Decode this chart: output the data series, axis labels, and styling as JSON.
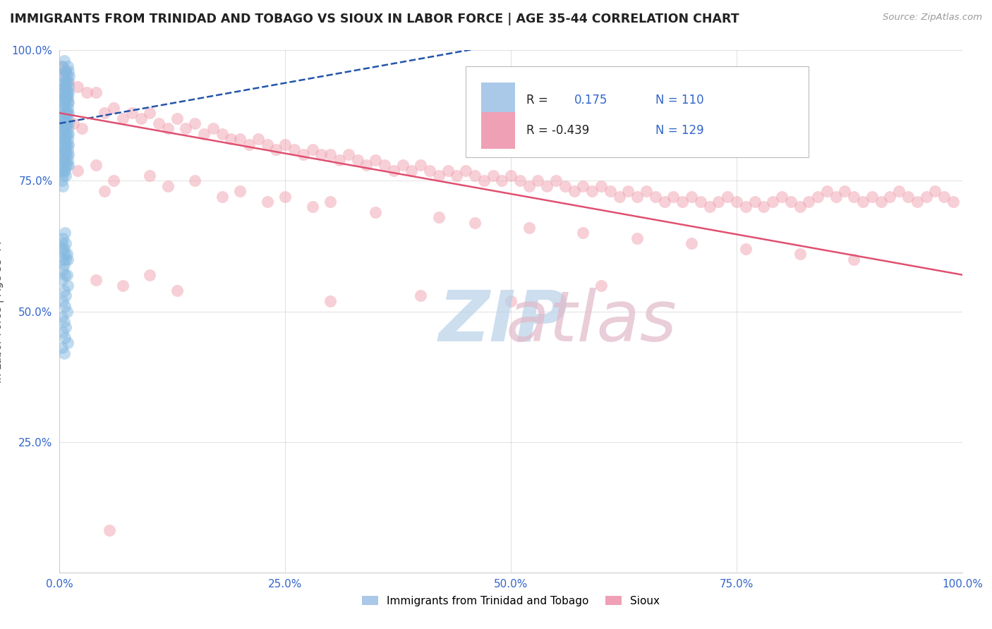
{
  "title": "IMMIGRANTS FROM TRINIDAD AND TOBAGO VS SIOUX IN LABOR FORCE | AGE 35-44 CORRELATION CHART",
  "source_text": "Source: ZipAtlas.com",
  "ylabel": "In Labor Force | Age 35-44",
  "xlim": [
    0.0,
    1.0
  ],
  "ylim": [
    0.0,
    1.0
  ],
  "x_ticks": [
    0.0,
    0.25,
    0.5,
    0.75,
    1.0
  ],
  "x_tick_labels": [
    "0.0%",
    "25.0%",
    "50.0%",
    "75.0%",
    "100.0%"
  ],
  "y_ticks": [
    0.25,
    0.5,
    0.75,
    1.0
  ],
  "y_tick_labels": [
    "25.0%",
    "50.0%",
    "75.0%",
    "100.0%"
  ],
  "r_blue": 0.175,
  "n_blue": 110,
  "r_pink": -0.439,
  "n_pink": 129,
  "blue_dot_color": "#85b9e0",
  "pink_dot_color": "#f0a0b0",
  "blue_line_color": "#2255aa",
  "pink_line_color": "#e05070",
  "watermark_zip_color": "#b8d0e8",
  "watermark_atlas_color": "#e0b8c8",
  "background_color": "#ffffff",
  "grid_color": "#cccccc",
  "tick_color": "#3366cc",
  "title_color": "#222222",
  "source_color": "#999999",
  "ylabel_color": "#444444",
  "blue_dots": [
    [
      0.003,
      0.97
    ],
    [
      0.007,
      0.96
    ],
    [
      0.005,
      0.98
    ],
    [
      0.004,
      0.95
    ],
    [
      0.009,
      0.97
    ],
    [
      0.006,
      0.96
    ],
    [
      0.008,
      0.95
    ],
    [
      0.005,
      0.94
    ],
    [
      0.01,
      0.96
    ],
    [
      0.007,
      0.93
    ],
    [
      0.004,
      0.92
    ],
    [
      0.009,
      0.94
    ],
    [
      0.006,
      0.93
    ],
    [
      0.003,
      0.91
    ],
    [
      0.011,
      0.95
    ],
    [
      0.008,
      0.92
    ],
    [
      0.005,
      0.91
    ],
    [
      0.01,
      0.93
    ],
    [
      0.007,
      0.94
    ],
    [
      0.004,
      0.92
    ],
    [
      0.006,
      0.9
    ],
    [
      0.009,
      0.91
    ],
    [
      0.003,
      0.89
    ],
    [
      0.008,
      0.92
    ],
    [
      0.005,
      0.93
    ],
    [
      0.007,
      0.91
    ],
    [
      0.004,
      0.9
    ],
    [
      0.01,
      0.92
    ],
    [
      0.006,
      0.88
    ],
    [
      0.009,
      0.9
    ],
    [
      0.003,
      0.87
    ],
    [
      0.008,
      0.91
    ],
    [
      0.005,
      0.89
    ],
    [
      0.007,
      0.88
    ],
    [
      0.004,
      0.86
    ],
    [
      0.01,
      0.9
    ],
    [
      0.006,
      0.87
    ],
    [
      0.009,
      0.89
    ],
    [
      0.003,
      0.85
    ],
    [
      0.008,
      0.88
    ],
    [
      0.005,
      0.87
    ],
    [
      0.007,
      0.86
    ],
    [
      0.004,
      0.84
    ],
    [
      0.01,
      0.88
    ],
    [
      0.006,
      0.85
    ],
    [
      0.009,
      0.87
    ],
    [
      0.003,
      0.83
    ],
    [
      0.008,
      0.86
    ],
    [
      0.005,
      0.85
    ],
    [
      0.007,
      0.84
    ],
    [
      0.004,
      0.82
    ],
    [
      0.01,
      0.86
    ],
    [
      0.006,
      0.83
    ],
    [
      0.009,
      0.85
    ],
    [
      0.003,
      0.81
    ],
    [
      0.008,
      0.84
    ],
    [
      0.005,
      0.83
    ],
    [
      0.007,
      0.82
    ],
    [
      0.004,
      0.8
    ],
    [
      0.01,
      0.84
    ],
    [
      0.006,
      0.81
    ],
    [
      0.009,
      0.83
    ],
    [
      0.003,
      0.79
    ],
    [
      0.008,
      0.82
    ],
    [
      0.005,
      0.81
    ],
    [
      0.007,
      0.8
    ],
    [
      0.004,
      0.78
    ],
    [
      0.01,
      0.82
    ],
    [
      0.006,
      0.79
    ],
    [
      0.009,
      0.81
    ],
    [
      0.003,
      0.77
    ],
    [
      0.008,
      0.8
    ],
    [
      0.005,
      0.79
    ],
    [
      0.007,
      0.78
    ],
    [
      0.004,
      0.76
    ],
    [
      0.01,
      0.8
    ],
    [
      0.006,
      0.77
    ],
    [
      0.009,
      0.79
    ],
    [
      0.003,
      0.75
    ],
    [
      0.008,
      0.78
    ],
    [
      0.005,
      0.77
    ],
    [
      0.007,
      0.76
    ],
    [
      0.004,
      0.74
    ],
    [
      0.01,
      0.78
    ],
    [
      0.003,
      0.63
    ],
    [
      0.006,
      0.65
    ],
    [
      0.004,
      0.64
    ],
    [
      0.007,
      0.63
    ],
    [
      0.005,
      0.62
    ],
    [
      0.008,
      0.61
    ],
    [
      0.004,
      0.6
    ],
    [
      0.003,
      0.62
    ],
    [
      0.006,
      0.61
    ],
    [
      0.009,
      0.6
    ],
    [
      0.005,
      0.59
    ],
    [
      0.007,
      0.6
    ],
    [
      0.004,
      0.58
    ],
    [
      0.006,
      0.57
    ],
    [
      0.003,
      0.56
    ],
    [
      0.008,
      0.57
    ],
    [
      0.009,
      0.55
    ],
    [
      0.005,
      0.54
    ],
    [
      0.007,
      0.53
    ],
    [
      0.004,
      0.52
    ],
    [
      0.006,
      0.51
    ],
    [
      0.008,
      0.5
    ],
    [
      0.003,
      0.49
    ],
    [
      0.005,
      0.48
    ],
    [
      0.007,
      0.47
    ],
    [
      0.004,
      0.46
    ],
    [
      0.006,
      0.45
    ],
    [
      0.009,
      0.44
    ],
    [
      0.003,
      0.43
    ],
    [
      0.005,
      0.42
    ]
  ],
  "pink_dots": [
    [
      0.003,
      0.97
    ],
    [
      0.007,
      0.96
    ],
    [
      0.005,
      0.95
    ],
    [
      0.01,
      0.94
    ],
    [
      0.02,
      0.93
    ],
    [
      0.03,
      0.92
    ],
    [
      0.008,
      0.88
    ],
    [
      0.015,
      0.86
    ],
    [
      0.025,
      0.85
    ],
    [
      0.04,
      0.92
    ],
    [
      0.06,
      0.89
    ],
    [
      0.08,
      0.88
    ],
    [
      0.05,
      0.88
    ],
    [
      0.07,
      0.87
    ],
    [
      0.09,
      0.87
    ],
    [
      0.1,
      0.88
    ],
    [
      0.11,
      0.86
    ],
    [
      0.12,
      0.85
    ],
    [
      0.13,
      0.87
    ],
    [
      0.14,
      0.85
    ],
    [
      0.15,
      0.86
    ],
    [
      0.16,
      0.84
    ],
    [
      0.17,
      0.85
    ],
    [
      0.18,
      0.84
    ],
    [
      0.19,
      0.83
    ],
    [
      0.2,
      0.83
    ],
    [
      0.21,
      0.82
    ],
    [
      0.22,
      0.83
    ],
    [
      0.23,
      0.82
    ],
    [
      0.24,
      0.81
    ],
    [
      0.25,
      0.82
    ],
    [
      0.26,
      0.81
    ],
    [
      0.27,
      0.8
    ],
    [
      0.28,
      0.81
    ],
    [
      0.29,
      0.8
    ],
    [
      0.3,
      0.8
    ],
    [
      0.31,
      0.79
    ],
    [
      0.32,
      0.8
    ],
    [
      0.33,
      0.79
    ],
    [
      0.34,
      0.78
    ],
    [
      0.35,
      0.79
    ],
    [
      0.36,
      0.78
    ],
    [
      0.37,
      0.77
    ],
    [
      0.38,
      0.78
    ],
    [
      0.39,
      0.77
    ],
    [
      0.4,
      0.78
    ],
    [
      0.41,
      0.77
    ],
    [
      0.42,
      0.76
    ],
    [
      0.43,
      0.77
    ],
    [
      0.44,
      0.76
    ],
    [
      0.45,
      0.77
    ],
    [
      0.46,
      0.76
    ],
    [
      0.47,
      0.75
    ],
    [
      0.48,
      0.76
    ],
    [
      0.49,
      0.75
    ],
    [
      0.5,
      0.76
    ],
    [
      0.51,
      0.75
    ],
    [
      0.52,
      0.74
    ],
    [
      0.53,
      0.75
    ],
    [
      0.54,
      0.74
    ],
    [
      0.55,
      0.75
    ],
    [
      0.56,
      0.74
    ],
    [
      0.57,
      0.73
    ],
    [
      0.58,
      0.74
    ],
    [
      0.59,
      0.73
    ],
    [
      0.6,
      0.74
    ],
    [
      0.61,
      0.73
    ],
    [
      0.62,
      0.72
    ],
    [
      0.63,
      0.73
    ],
    [
      0.64,
      0.72
    ],
    [
      0.65,
      0.73
    ],
    [
      0.66,
      0.72
    ],
    [
      0.67,
      0.71
    ],
    [
      0.68,
      0.72
    ],
    [
      0.69,
      0.71
    ],
    [
      0.7,
      0.72
    ],
    [
      0.71,
      0.71
    ],
    [
      0.72,
      0.7
    ],
    [
      0.73,
      0.71
    ],
    [
      0.74,
      0.72
    ],
    [
      0.75,
      0.71
    ],
    [
      0.76,
      0.7
    ],
    [
      0.77,
      0.71
    ],
    [
      0.78,
      0.7
    ],
    [
      0.79,
      0.71
    ],
    [
      0.8,
      0.72
    ],
    [
      0.81,
      0.71
    ],
    [
      0.82,
      0.7
    ],
    [
      0.83,
      0.71
    ],
    [
      0.84,
      0.72
    ],
    [
      0.85,
      0.73
    ],
    [
      0.86,
      0.72
    ],
    [
      0.87,
      0.73
    ],
    [
      0.88,
      0.72
    ],
    [
      0.89,
      0.71
    ],
    [
      0.9,
      0.72
    ],
    [
      0.91,
      0.71
    ],
    [
      0.92,
      0.72
    ],
    [
      0.93,
      0.73
    ],
    [
      0.94,
      0.72
    ],
    [
      0.95,
      0.71
    ],
    [
      0.96,
      0.72
    ],
    [
      0.97,
      0.73
    ],
    [
      0.98,
      0.72
    ],
    [
      0.99,
      0.71
    ],
    [
      0.02,
      0.77
    ],
    [
      0.04,
      0.78
    ],
    [
      0.06,
      0.75
    ],
    [
      0.1,
      0.76
    ],
    [
      0.15,
      0.75
    ],
    [
      0.2,
      0.73
    ],
    [
      0.25,
      0.72
    ],
    [
      0.3,
      0.71
    ],
    [
      0.05,
      0.73
    ],
    [
      0.12,
      0.74
    ],
    [
      0.18,
      0.72
    ],
    [
      0.23,
      0.71
    ],
    [
      0.28,
      0.7
    ],
    [
      0.35,
      0.69
    ],
    [
      0.42,
      0.68
    ],
    [
      0.46,
      0.67
    ],
    [
      0.52,
      0.66
    ],
    [
      0.58,
      0.65
    ],
    [
      0.64,
      0.64
    ],
    [
      0.7,
      0.63
    ],
    [
      0.76,
      0.62
    ],
    [
      0.82,
      0.61
    ],
    [
      0.88,
      0.6
    ],
    [
      0.04,
      0.56
    ],
    [
      0.07,
      0.55
    ],
    [
      0.1,
      0.57
    ],
    [
      0.13,
      0.54
    ],
    [
      0.3,
      0.52
    ],
    [
      0.4,
      0.53
    ],
    [
      0.5,
      0.52
    ],
    [
      0.6,
      0.55
    ],
    [
      0.055,
      0.08
    ]
  ]
}
